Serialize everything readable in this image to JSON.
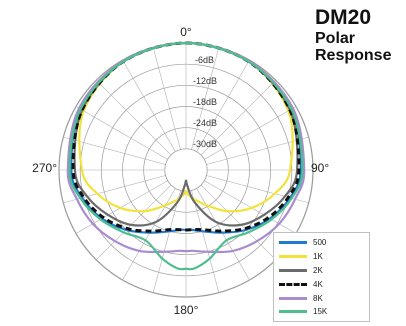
{
  "title": {
    "model": "DM20",
    "subtitle_line1": "Polar",
    "subtitle_line2": "Response"
  },
  "chart_data": {
    "type": "polar",
    "title": "DM20 Polar Response",
    "angle_labels": [
      "0°",
      "90°",
      "180°",
      "270°"
    ],
    "ring_labels": [
      "-6dB",
      "-12dB",
      "-18dB",
      "-24dB",
      "-30dB"
    ],
    "r_range_db": [
      -36,
      0
    ],
    "angles_deg": [
      0,
      30,
      60,
      90,
      105,
      120,
      135,
      150,
      165,
      175,
      180
    ],
    "series": [
      {
        "name": "500",
        "color": "#1f7bd1",
        "dash": "solid",
        "values_db": [
          0,
          -0.5,
          -1.5,
          -3.5,
          -5.5,
          -8.5,
          -12,
          -15.5,
          -18,
          -19,
          -19
        ]
      },
      {
        "name": "1K",
        "color": "#f2e33a",
        "dash": "solid",
        "values_db": [
          0,
          -0.5,
          -2.5,
          -6.5,
          -10,
          -14.5,
          -19.5,
          -24.5,
          -27.5,
          -29,
          -30
        ]
      },
      {
        "name": "2K",
        "color": "#6b6b6b",
        "dash": "solid",
        "values_db": [
          0,
          -0.5,
          -2,
          -4.5,
          -7,
          -10.5,
          -14,
          -19,
          -26.5,
          -31.5,
          -33
        ]
      },
      {
        "name": "4K",
        "color": "#111111",
        "dash": "dashed",
        "values_db": [
          0,
          -0.5,
          -2,
          -4,
          -6,
          -9,
          -12.5,
          -16,
          -18.5,
          -19,
          -19
        ]
      },
      {
        "name": "8K",
        "color": "#a98bd0",
        "dash": "solid",
        "values_db": [
          0,
          -0.3,
          -1,
          -2.5,
          -4,
          -5.5,
          -7.5,
          -9.5,
          -12,
          -13,
          -13
        ]
      },
      {
        "name": "15K",
        "color": "#4dbf8f",
        "dash": "solid",
        "values_db": [
          0,
          -0.5,
          -1.5,
          -3,
          -5,
          -8,
          -11,
          -13,
          -10,
          -8,
          -8
        ]
      }
    ],
    "grid": true,
    "legend_position": "bottom-right"
  }
}
